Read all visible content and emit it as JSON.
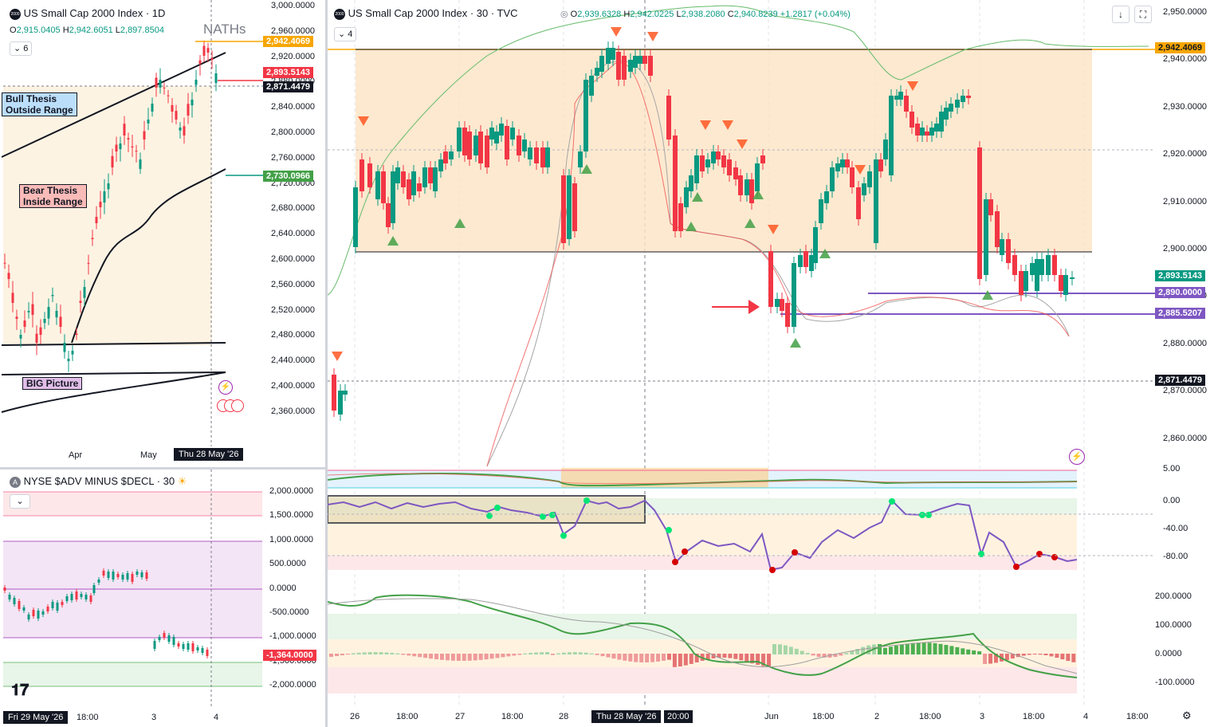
{
  "left_chart": {
    "title": "US Small Cap 2000 Index · 1D",
    "symbol_icon": "2000",
    "ohlc": {
      "o": "2,915.0405",
      "h": "2,942.6051",
      "l": "2,897.8504"
    },
    "indicator_count": "6",
    "price_axis": [
      "3,000.0000",
      "2,960.0000",
      "2,920.0000",
      "2,880.0000",
      "2,840.0000",
      "2,800.0000",
      "2,760.0000",
      "2,720.0000",
      "2,680.0000",
      "2,640.0000",
      "2,600.0000",
      "2,560.0000",
      "2,520.0000",
      "2,480.0000",
      "2,440.0000",
      "2,400.0000",
      "2,360.0000"
    ],
    "tags": {
      "orange": "2,942.4069",
      "red": "2,893.5143",
      "black": "2,871.4479",
      "green": "2,730.0966"
    },
    "notes": {
      "naths": "NATHs",
      "bull": "Bull Thesis Outside Range",
      "bull_line1": "Bull Thesis",
      "bull_line2": "Outside Range",
      "bear_line1": "Bear Thesis",
      "bear_line2": "Inside Range",
      "big": "BIG Picture"
    },
    "time_axis": {
      "apr": "Apr",
      "may": "May",
      "current": "Thu 28 May '26"
    }
  },
  "adv_chart": {
    "title": "NYSE $ADV MINUS $DECL · 30",
    "price_axis": [
      "2,000.0000",
      "1,500.0000",
      "1,000.0000",
      "500.0000",
      "0.0000",
      "-500.0000",
      "-1,000.0000",
      "-1,500.0000",
      "-2,000.0000"
    ],
    "tag": "-1,364.0000",
    "time_axis": {
      "current": "Fri 29 May '26",
      "t1800": "18:00",
      "d3": "3",
      "d4": "4"
    }
  },
  "main_chart": {
    "title": "US Small Cap 2000 Index · 30 · TVC",
    "symbol_icon": "2000",
    "ohlc": {
      "o": "2,939.6328",
      "h": "2,942.0225",
      "l": "2,938.2080",
      "c": "2,940.8239",
      "chg": "+1.2817 (+0.04%)"
    },
    "indicator_count": "4",
    "price_axis": [
      "2,950.0000",
      "2,940.0000",
      "2,930.0000",
      "2,920.0000",
      "2,910.0000",
      "2,900.0000",
      "2,890.0000",
      "2,880.0000",
      "2,870.0000",
      "2,860.0000"
    ],
    "tags": {
      "orange": "2,942.4069",
      "green": "2,893.5143",
      "purple1": "2,890.0000",
      "purple2": "2,885.5207",
      "black": "2,871.4479"
    },
    "osc1_axis": {
      "top": "5.00"
    },
    "osc2_axis": [
      "0.00",
      "-40.00",
      "-80.00"
    ],
    "osc3_axis": [
      "200.0000",
      "100.0000",
      "0.0000",
      "-100.0000"
    ],
    "time_axis": [
      "26",
      "18:00",
      "27",
      "18:00",
      "28",
      "18:00",
      "Jun",
      "18:00",
      "2",
      "18:00",
      "3",
      "18:00",
      "4",
      "18:00"
    ],
    "time_current": "Thu 28 May '26",
    "time_current2": "20:00"
  },
  "colors": {
    "up": "#089981",
    "down": "#f23645",
    "orange": "#f7a600",
    "purple": "#7e57c2",
    "range_fill": "#fde3c4"
  }
}
